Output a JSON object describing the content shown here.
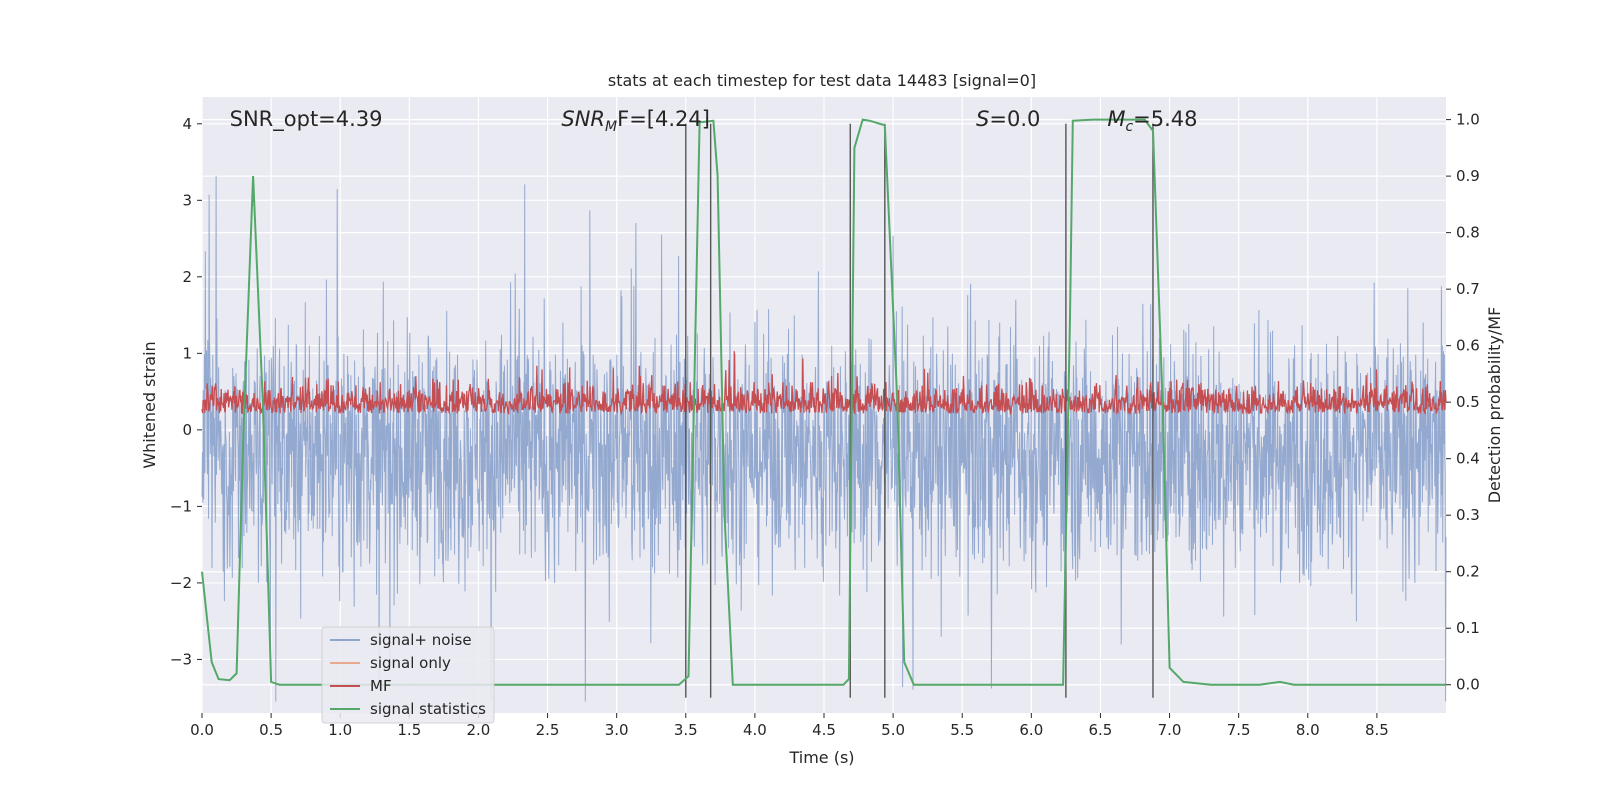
{
  "chart_data": {
    "type": "line",
    "title": "stats at each timestep for test data 14483 [signal=0]",
    "xlabel": "Time (s)",
    "ylabel": "Whitened strain",
    "ylabel_right": "Detection probability/MF",
    "xlim": [
      0,
      9.0
    ],
    "ylim": [
      -3.7,
      4.35
    ],
    "ylim_right": [
      -0.05,
      1.04
    ],
    "x_ticks": [
      0.0,
      0.5,
      1.0,
      1.5,
      2.0,
      2.5,
      3.0,
      3.5,
      4.0,
      4.5,
      5.0,
      5.5,
      6.0,
      6.5,
      7.0,
      7.5,
      8.0,
      8.5
    ],
    "x_tick_labels": [
      "0.0",
      "0.5",
      "1.0",
      "1.5",
      "2.0",
      "2.5",
      "3.0",
      "3.5",
      "4.0",
      "4.5",
      "5.0",
      "5.5",
      "6.0",
      "6.5",
      "7.0",
      "7.5",
      "8.0",
      "8.5"
    ],
    "y_ticks": [
      -3,
      -2,
      -1,
      0,
      1,
      2,
      3,
      4
    ],
    "y_tick_labels": [
      "−3",
      "−2",
      "−1",
      "0",
      "1",
      "2",
      "3",
      "4"
    ],
    "y_right_ticks": [
      0.0,
      0.1,
      0.2,
      0.3,
      0.4,
      0.5,
      0.6,
      0.7,
      0.8,
      0.9,
      1.0
    ],
    "y_right_tick_labels": [
      "0.0",
      "0.1",
      "0.2",
      "0.3",
      "0.4",
      "0.5",
      "0.6",
      "0.7",
      "0.8",
      "0.9",
      "1.0"
    ],
    "grid": true,
    "legend_position": "lower-left",
    "annotations": [
      {
        "text": "SNR_opt=4.39",
        "x": 0.2,
        "y": 4.0
      },
      {
        "text_main": "SNR",
        "text_sub": "M",
        "text_rest": "F=[4.24]",
        "x": 2.6,
        "y": 4.0
      },
      {
        "text_main": "S",
        "text_rest": "=0.0",
        "x": 5.6,
        "y": 4.0
      },
      {
        "text_main": "M",
        "text_sub": "c",
        "text_rest": "=5.48",
        "x": 6.55,
        "y": 4.0
      }
    ],
    "vlines": [
      3.5,
      3.68,
      4.69,
      4.94,
      6.25,
      6.88
    ],
    "vline_range": [
      -3.5,
      4.0
    ],
    "colors": {
      "noise": "#8fa5cc",
      "signal": "#e8a98c",
      "mf": "#c44e52",
      "stats": "#55a868",
      "vline": "#555555",
      "plot_bg": "#eaeaf2",
      "grid": "#ffffff"
    },
    "series": [
      {
        "name": "signal+ noise",
        "role": "noise",
        "description_values": "dense noise, mean -0.3, spikes to ±3.5"
      },
      {
        "name": "signal only",
        "role": "signal",
        "values": [
          0,
          0
        ]
      },
      {
        "name": "MF",
        "role": "mf",
        "description_values": "band around 0.5 (right axis), range 0.47-0.63"
      },
      {
        "name": "signal statistics",
        "role": "stats",
        "axis": "right",
        "x": [
          0.0,
          0.07,
          0.12,
          0.2,
          0.25,
          0.3,
          0.37,
          0.44,
          0.5,
          0.56,
          0.7,
          1.0,
          2.0,
          3.0,
          3.45,
          3.52,
          3.6,
          3.7,
          3.73,
          3.78,
          3.84,
          4.0,
          4.5,
          4.64,
          4.68,
          4.72,
          4.78,
          4.83,
          4.94,
          5.03,
          5.08,
          5.15,
          6.0,
          6.23,
          6.28,
          6.3,
          6.45,
          6.82,
          6.88,
          6.95,
          7.0,
          7.1,
          7.3,
          7.5,
          7.65,
          7.8,
          7.9,
          8.5,
          9.0
        ],
        "y": [
          0.2,
          0.04,
          0.01,
          0.008,
          0.02,
          0.45,
          0.9,
          0.5,
          0.005,
          0.0,
          0.0,
          0.0,
          0.0,
          0.0,
          0.0,
          0.015,
          0.995,
          0.998,
          0.9,
          0.3,
          0.0,
          0.0,
          0.0,
          0.0,
          0.01,
          0.95,
          1.0,
          0.998,
          0.99,
          0.5,
          0.04,
          0.0,
          0.0,
          0.0,
          0.65,
          0.998,
          1.0,
          1.0,
          0.98,
          0.5,
          0.03,
          0.005,
          0.0,
          0.0,
          0.0,
          0.005,
          0.0,
          0.0,
          0.0
        ]
      }
    ]
  }
}
